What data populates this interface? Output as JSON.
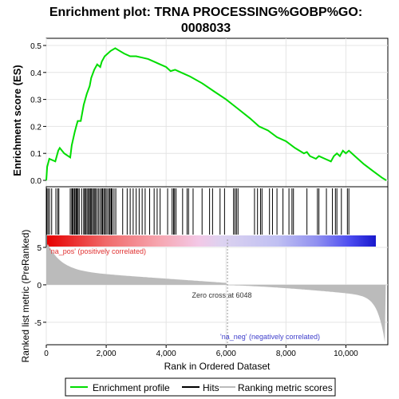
{
  "chart_data": {
    "type": "line",
    "title_line1": "Enrichment plot: TRNA PROCESSING%GOBP%GO:",
    "title_line2": "0008033",
    "ylabel_top": "Enrichment score (ES)",
    "ylabel_bottom": "Ranked list metric (PreRanked)",
    "xlabel": "Rank in Ordered Dataset",
    "xlim": [
      0,
      11400
    ],
    "es_ylim": [
      0,
      0.5
    ],
    "es_yticks": [
      "0.0",
      "0.1",
      "0.2",
      "0.3",
      "0.4",
      "0.5"
    ],
    "metric_ylim": [
      -8,
      5
    ],
    "metric_yticks": [
      "5",
      "0",
      "-5"
    ],
    "xticks": [
      "0",
      "2,000",
      "4,000",
      "6,000",
      "8,000",
      "10,000"
    ],
    "xtick_values": [
      0,
      2000,
      4000,
      6000,
      8000,
      10000
    ],
    "grid": true,
    "legend_position": "bottom",
    "pos_label": "'na_pos' (positively correlated)",
    "neg_label": "'na_neg' (negatively correlated)",
    "zero_cross_label": "Zero cross at 6048",
    "zero_cross": 6048,
    "series": [
      {
        "name": "Enrichment profile",
        "color": "#00dd00",
        "points": [
          [
            0,
            0.0
          ],
          [
            30,
            0.05
          ],
          [
            100,
            0.08
          ],
          [
            300,
            0.07
          ],
          [
            400,
            0.11
          ],
          [
            450,
            0.12
          ],
          [
            600,
            0.1
          ],
          [
            800,
            0.085
          ],
          [
            850,
            0.13
          ],
          [
            950,
            0.18
          ],
          [
            1000,
            0.2
          ],
          [
            1050,
            0.22
          ],
          [
            1150,
            0.22
          ],
          [
            1250,
            0.28
          ],
          [
            1300,
            0.3
          ],
          [
            1350,
            0.32
          ],
          [
            1450,
            0.35
          ],
          [
            1500,
            0.38
          ],
          [
            1600,
            0.41
          ],
          [
            1700,
            0.43
          ],
          [
            1800,
            0.42
          ],
          [
            1850,
            0.44
          ],
          [
            1950,
            0.46
          ],
          [
            2050,
            0.47
          ],
          [
            2150,
            0.48
          ],
          [
            2300,
            0.49
          ],
          [
            2450,
            0.48
          ],
          [
            2600,
            0.47
          ],
          [
            2800,
            0.46
          ],
          [
            3000,
            0.46
          ],
          [
            3200,
            0.455
          ],
          [
            3400,
            0.45
          ],
          [
            3600,
            0.44
          ],
          [
            3800,
            0.43
          ],
          [
            4000,
            0.42
          ],
          [
            4150,
            0.405
          ],
          [
            4300,
            0.41
          ],
          [
            4500,
            0.4
          ],
          [
            4800,
            0.385
          ],
          [
            5200,
            0.36
          ],
          [
            5600,
            0.33
          ],
          [
            6000,
            0.3
          ],
          [
            6400,
            0.265
          ],
          [
            6800,
            0.23
          ],
          [
            7100,
            0.2
          ],
          [
            7400,
            0.185
          ],
          [
            7700,
            0.16
          ],
          [
            8000,
            0.145
          ],
          [
            8300,
            0.12
          ],
          [
            8600,
            0.1
          ],
          [
            8700,
            0.105
          ],
          [
            8800,
            0.09
          ],
          [
            9000,
            0.08
          ],
          [
            9100,
            0.09
          ],
          [
            9300,
            0.08
          ],
          [
            9500,
            0.07
          ],
          [
            9600,
            0.09
          ],
          [
            9700,
            0.1
          ],
          [
            9800,
            0.09
          ],
          [
            9900,
            0.11
          ],
          [
            10000,
            0.1
          ],
          [
            10100,
            0.11
          ],
          [
            10300,
            0.09
          ],
          [
            10600,
            0.06
          ],
          [
            10900,
            0.035
          ],
          [
            11200,
            0.01
          ],
          [
            11350,
            0.0
          ]
        ]
      },
      {
        "name": "Hits",
        "color": "#000000",
        "positions": [
          5,
          20,
          60,
          110,
          180,
          320,
          380,
          420,
          800,
          850,
          870,
          900,
          940,
          960,
          1000,
          1030,
          1060,
          1100,
          1180,
          1250,
          1280,
          1320,
          1360,
          1400,
          1440,
          1470,
          1500,
          1540,
          1580,
          1620,
          1650,
          1700,
          1750,
          1800,
          1850,
          1880,
          1920,
          1960,
          2000,
          2050,
          2100,
          2130,
          2170,
          2200,
          2260,
          2320,
          2550,
          2700,
          2800,
          2900,
          3000,
          3100,
          3200,
          3300,
          3450,
          3600,
          3700,
          3800,
          4050,
          4200,
          4250,
          4280,
          4330,
          4550,
          4700,
          4750,
          4900,
          5200,
          5450,
          5550,
          5800,
          5950,
          6250,
          6300,
          6350,
          6400,
          6950,
          7050,
          7150,
          7200,
          7450,
          7550,
          7700,
          7900,
          8100,
          8200,
          8250,
          8700,
          9050,
          9100,
          9350,
          9550,
          9650,
          9700,
          9850,
          10050,
          10100
        ]
      },
      {
        "name": "Ranking metric scores",
        "color": "#bbbbbb"
      }
    ]
  }
}
